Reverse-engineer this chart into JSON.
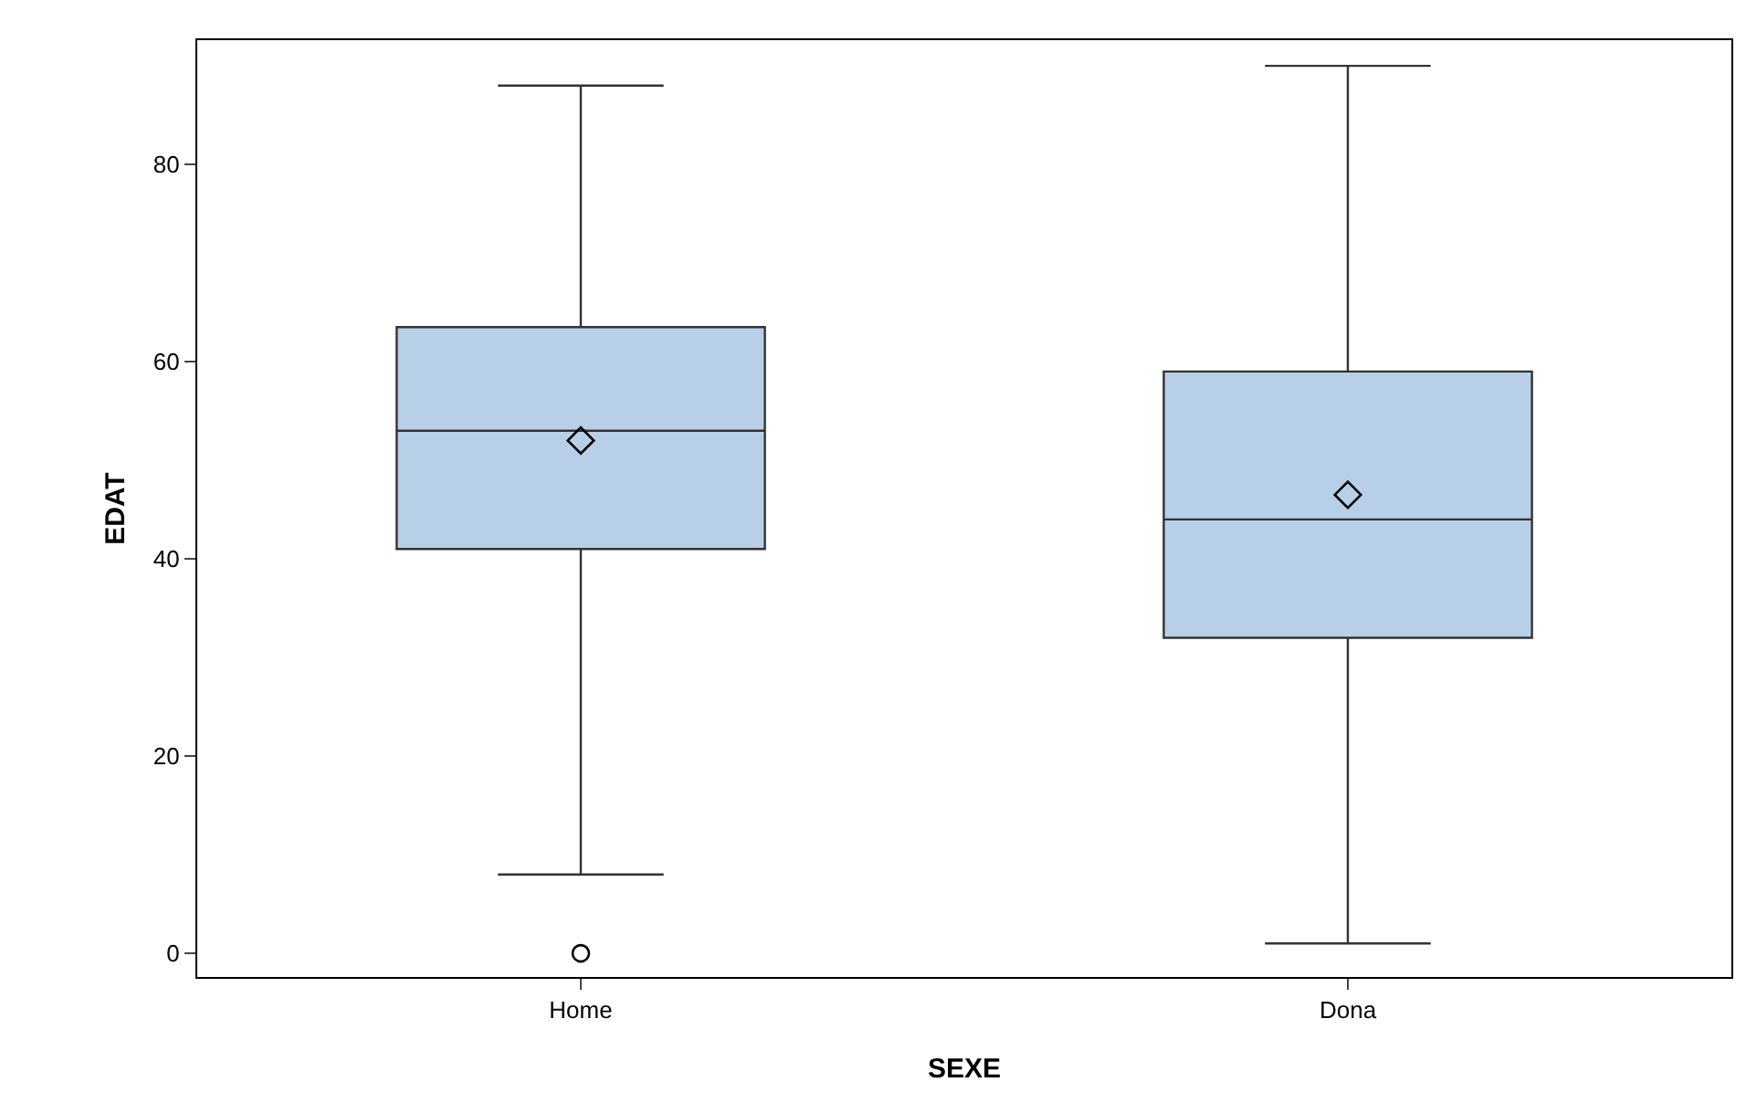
{
  "chart_data": {
    "type": "box",
    "xlabel": "SEXE",
    "ylabel": "EDAT",
    "categories": [
      "Home",
      "Dona"
    ],
    "color": "#b8cfe8",
    "boxes": [
      {
        "low": 8,
        "q1": 41,
        "median": 53,
        "q3": 63.5,
        "high": 88,
        "mean": 52,
        "outliers": [
          0
        ]
      },
      {
        "low": 1,
        "q1": 32,
        "median": 44,
        "q3": 59,
        "high": 90,
        "mean": 46.5
      }
    ],
    "ylim": [
      -2.4,
      92.6
    ],
    "yticks": [
      0,
      20,
      40,
      60,
      80
    ],
    "grid": false
  }
}
